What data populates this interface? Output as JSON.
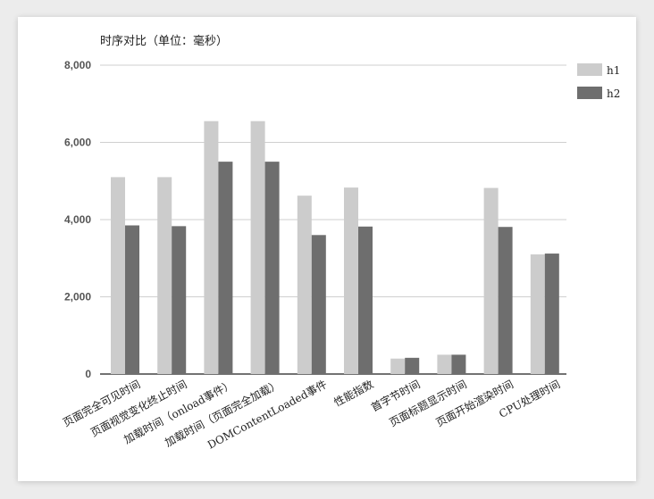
{
  "chart_data": {
    "type": "bar",
    "title": "时序对比（单位：毫秒）",
    "xlabel": "",
    "ylabel": "",
    "ylim": [
      0,
      8000
    ],
    "yticks": [
      "0",
      "2,000",
      "4,000",
      "6,000",
      "8,000"
    ],
    "ytick_values": [
      0,
      2000,
      4000,
      6000,
      8000
    ],
    "grid": true,
    "legend_position": "right",
    "categories": [
      "页面完全可见时间",
      "页面视觉变化终止时间",
      "加载时间（onload事件）",
      "加载时间（页面完全加载）",
      "DOMContentLoaded事件",
      "性能指数",
      "首字节时间",
      "页面标题显示时间",
      "页面开始渲染时间",
      "CPU处理时间"
    ],
    "series": [
      {
        "name": "h1",
        "color": "#cccccc",
        "values": [
          5100,
          5100,
          6550,
          6550,
          4620,
          4830,
          400,
          500,
          4820,
          3100
        ]
      },
      {
        "name": "h2",
        "color": "#6e6e6e",
        "values": [
          3850,
          3830,
          5500,
          5500,
          3600,
          3820,
          420,
          500,
          3810,
          3120
        ]
      }
    ]
  }
}
